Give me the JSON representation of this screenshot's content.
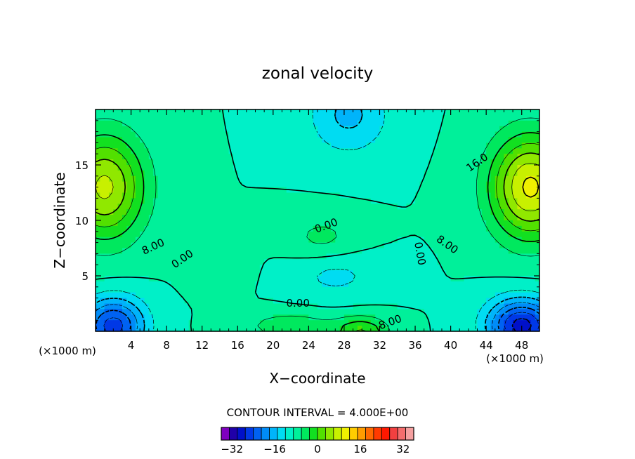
{
  "chart_data": {
    "type": "heatmap",
    "title": "zonal velocity",
    "xlabel": "X−coordinate",
    "ylabel": "Z−coordinate",
    "x_unit_left": "(×1000 m)",
    "x_unit_right": "(×1000 m)",
    "xlim": [
      0,
      50
    ],
    "ylim": [
      0,
      20
    ],
    "x_ticks": [
      4,
      8,
      12,
      16,
      20,
      24,
      28,
      32,
      36,
      40,
      44,
      48
    ],
    "y_ticks": [
      5,
      10,
      15
    ],
    "contour_interval_text": "CONTOUR INTERVAL = 4.000E+00",
    "contour_labels": [
      {
        "text": "16.0",
        "x": 43.0,
        "y": 15.2,
        "angle": -35
      },
      {
        "text": "8.00",
        "x": 6.5,
        "y": 7.6,
        "angle": -25
      },
      {
        "text": "0.00",
        "x": 9.8,
        "y": 6.5,
        "angle": -35
      },
      {
        "text": "0.00",
        "x": 26.0,
        "y": 9.5,
        "angle": -20
      },
      {
        "text": "0.00",
        "x": 22.8,
        "y": 2.5,
        "angle": 0
      },
      {
        "text": "8.00",
        "x": 33.2,
        "y": 0.8,
        "angle": -20
      },
      {
        "text": "0.00",
        "x": 36.5,
        "y": 7.0,
        "angle": 80
      },
      {
        "text": "8.00",
        "x": 39.6,
        "y": 7.8,
        "angle": 35
      }
    ],
    "field_sources": [
      {
        "x": 1,
        "y": 13,
        "amp": 21,
        "sx": 4.5,
        "sz": 4.8
      },
      {
        "x": 49,
        "y": 13,
        "amp": 25,
        "sx": 4.5,
        "sz": 4.6
      },
      {
        "x": 2,
        "y": 0.5,
        "amp": -22,
        "sx": 3.5,
        "sz": 2.5
      },
      {
        "x": 48,
        "y": 0.5,
        "amp": -26,
        "sx": 3.8,
        "sz": 2.4
      },
      {
        "x": 28.5,
        "y": 19.5,
        "amp": -9,
        "sx": 4.5,
        "sz": 3.5
      },
      {
        "x": 30,
        "y": 0,
        "amp": 12,
        "sx": 3,
        "sz": 1.3
      },
      {
        "x": 22,
        "y": 0.5,
        "amp": 7,
        "sx": 5,
        "sz": 1.2
      },
      {
        "x": 27,
        "y": 5,
        "amp": -5,
        "sx": 5,
        "sz": 2
      },
      {
        "x": 25.5,
        "y": 8.5,
        "amp": 5,
        "sx": 4,
        "sz": 2
      },
      {
        "x": 14,
        "y": 6,
        "amp": 3,
        "sx": 3,
        "sz": 2
      }
    ],
    "colorbar": {
      "min": -36,
      "max": 36,
      "step": 4,
      "tick_labels": [
        "−32",
        "−16",
        "0",
        "16",
        "32"
      ],
      "tick_values": [
        -32,
        -16,
        0,
        16,
        32
      ],
      "colors": [
        "#7f00bf",
        "#2000a8",
        "#0010ca",
        "#0038e6",
        "#0062f2",
        "#008cf8",
        "#00b4fa",
        "#00dcf2",
        "#00f0c8",
        "#00f09a",
        "#00e85e",
        "#12e020",
        "#52e000",
        "#90e800",
        "#c8f000",
        "#f0f000",
        "#ffcc00",
        "#ff9c00",
        "#ff6a00",
        "#ff3a00",
        "#ff1800",
        "#f24040",
        "#f56d6d",
        "#f5a0a0"
      ]
    }
  }
}
